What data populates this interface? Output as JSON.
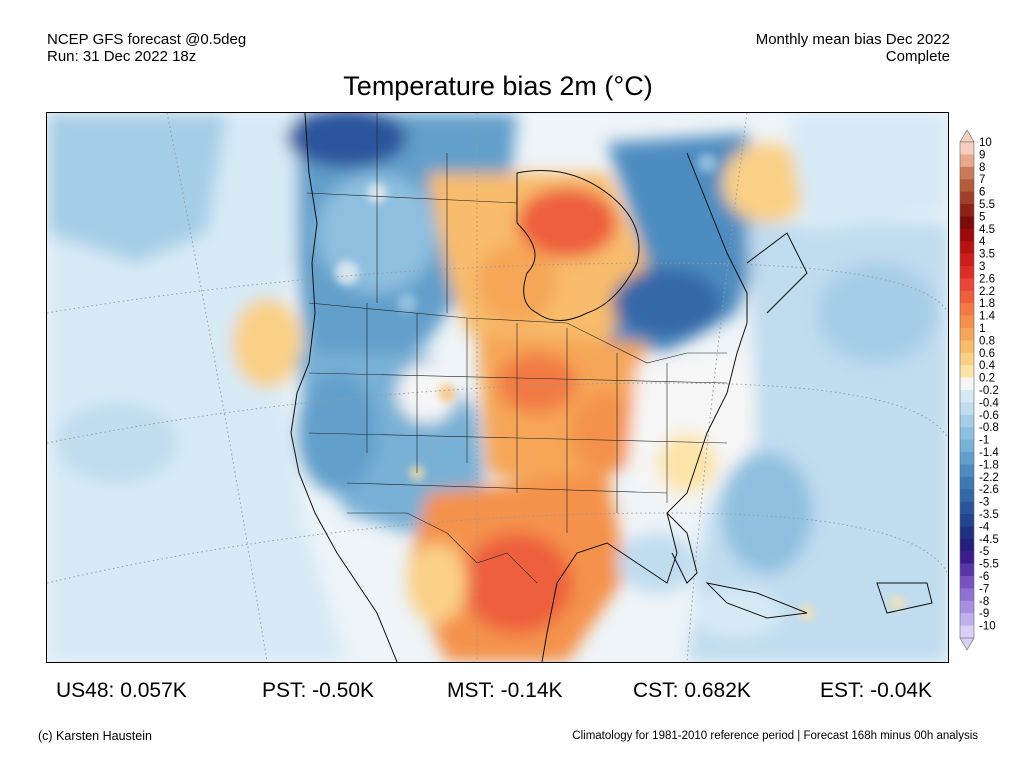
{
  "header": {
    "left_line1": "NCEP GFS forecast @0.5deg",
    "left_line2": "Run: 31 Dec 2022 18z",
    "right_line1": "Monthly mean bias Dec 2022",
    "right_line2": "Complete"
  },
  "title": "Temperature bias 2m (°C)",
  "colorbar": {
    "labels": [
      "10",
      "9",
      "8",
      "7",
      "6",
      "5.5",
      "5",
      "4.5",
      "4",
      "3.5",
      "3",
      "2.6",
      "2.2",
      "1.8",
      "1.4",
      "1",
      "0.8",
      "0.6",
      "0.4",
      "0.2",
      "-0.2",
      "-0.4",
      "-0.6",
      "-0.8",
      "-1",
      "-1.4",
      "-1.8",
      "-2.2",
      "-2.6",
      "-3",
      "-3.5",
      "-4",
      "-4.5",
      "-5",
      "-5.5",
      "-6",
      "-7",
      "-8",
      "-9",
      "-10"
    ],
    "colors": [
      "#f4cfc0",
      "#e8a88e",
      "#c97a5a",
      "#b45c3a",
      "#a0402a",
      "#8e2418",
      "#7a0c0c",
      "#9c0a0a",
      "#b61212",
      "#cc1c1c",
      "#dc2e26",
      "#e8463a",
      "#ee5f3e",
      "#f27a45",
      "#f4924c",
      "#f6a657",
      "#f8bc6c",
      "#fad087",
      "#fce3a8",
      "#f6f6f6",
      "#d6eaf6",
      "#c0dcef",
      "#a6cde7",
      "#8ebfdf",
      "#78b0d6",
      "#629fcb",
      "#4e8cc0",
      "#3f79b4",
      "#3467a8",
      "#2a559c",
      "#23438f",
      "#1f3282",
      "#241e7c",
      "#3b1e8c",
      "#5a35a6",
      "#7752c0",
      "#9070d2",
      "#a890e0",
      "#c0b0ec",
      "#d8d0f6"
    ]
  },
  "map": {
    "regions": [
      {
        "name": "pacific-ocean-light",
        "color": "#d6eaf6"
      },
      {
        "name": "alaska-canada-west-blue",
        "color": "#629fcb"
      },
      {
        "name": "hudson-bay-warm",
        "color": "#f4924c"
      },
      {
        "name": "quebec-cold",
        "color": "#3f79b4"
      },
      {
        "name": "great-plains-warm",
        "color": "#f27a45"
      },
      {
        "name": "texas-mexico-warm",
        "color": "#ee5f3e"
      },
      {
        "name": "western-us-cold",
        "color": "#78b0d6"
      },
      {
        "name": "atlantic-light",
        "color": "#c0dcef"
      },
      {
        "name": "greenland-warm",
        "color": "#fad087"
      }
    ]
  },
  "stats": {
    "us48": "US48: 0.057K",
    "pst": "PST: -0.50K",
    "mst": "MST: -0.14K",
    "cst": "CST: 0.682K",
    "est": "EST: -0.04K"
  },
  "credit": "(c) Karsten Haustein",
  "footnote": "Climatology for 1981-2010 reference period | Forecast 168h minus 00h analysis"
}
